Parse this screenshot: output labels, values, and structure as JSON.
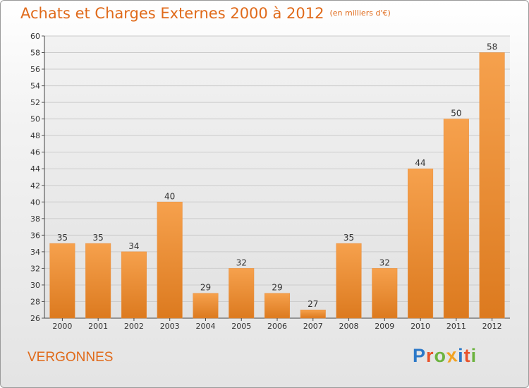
{
  "header": {
    "title": "Achats et Charges Externes 2000 à 2012",
    "subtitle": "(en milliers d'€)"
  },
  "footer": {
    "commune": "VERGONNES",
    "logo_letters": [
      "P",
      "r",
      "o",
      "x",
      "i",
      "t",
      "i"
    ],
    "logo_colors": [
      "#2b78c8",
      "#e9522a",
      "#6cb33f",
      "#f2a324",
      "#2b78c8",
      "#e9522a",
      "#6cb33f"
    ]
  },
  "colors": {
    "bar_light": "#f6a14d",
    "bar_dark": "#dc7a1f",
    "title": "#e06a1a",
    "grid": "#cccccc"
  },
  "chart_data": {
    "type": "bar",
    "title": "Achats et Charges Externes 2000 à 2012",
    "subtitle": "(en milliers d'€)",
    "categories": [
      "2000",
      "2001",
      "2002",
      "2003",
      "2004",
      "2005",
      "2006",
      "2007",
      "2008",
      "2009",
      "2010",
      "2011",
      "2012"
    ],
    "values": [
      35,
      35,
      34,
      40,
      29,
      32,
      29,
      27,
      35,
      32,
      44,
      50,
      58
    ],
    "ylim": [
      26,
      60
    ],
    "ytick_step": 2,
    "grid": true
  }
}
